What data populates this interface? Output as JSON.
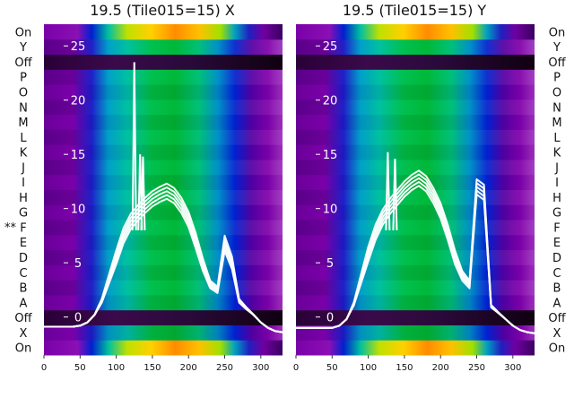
{
  "chart_data": [
    {
      "type": "heatmap",
      "title": "19.5 (Tile015=15) X",
      "row_labels_left": [
        "On",
        "X",
        "Off",
        "A",
        "B",
        "C",
        "D",
        "E",
        "F",
        "G",
        "H",
        "I",
        "J",
        "K",
        "L",
        "M",
        "N",
        "O",
        "P",
        "Off",
        "Y",
        "On"
      ],
      "marked_row": "F",
      "marker_text": "**",
      "x_ticks": [
        0,
        50,
        100,
        150,
        200,
        250,
        300
      ],
      "xlim": [
        0,
        330
      ],
      "overlay_y_ticks": [
        0,
        5,
        10,
        15,
        20,
        25
      ],
      "overlay_ylim": [
        -3.5,
        27
      ],
      "overlay_series": {
        "x": [
          0,
          10,
          20,
          30,
          40,
          50,
          60,
          70,
          80,
          90,
          100,
          110,
          120,
          130,
          140,
          150,
          160,
          170,
          180,
          190,
          200,
          210,
          220,
          230,
          240,
          250,
          260,
          270,
          280,
          290,
          300,
          310,
          320,
          330
        ],
        "y": [
          -0.9,
          -0.9,
          -0.9,
          -0.9,
          -0.9,
          -0.8,
          -0.5,
          0.2,
          1.5,
          3.5,
          5.5,
          7.5,
          8.8,
          9.6,
          10.3,
          10.9,
          11.3,
          11.6,
          11.2,
          10.3,
          9.0,
          7.0,
          4.8,
          3.0,
          2.5,
          6.8,
          5.0,
          1.5,
          0.8,
          0.2,
          -0.5,
          -1.0,
          -1.3,
          -1.4
        ]
      },
      "overlay_spikes": [
        {
          "x": 125,
          "y": 23.5
        },
        {
          "x": 133,
          "y": 15.0
        },
        {
          "x": 137,
          "y": 14.8
        }
      ]
    },
    {
      "type": "heatmap",
      "title": "19.5 (Tile015=15) Y",
      "row_labels_right": [
        "On",
        "X",
        "Off",
        "A",
        "B",
        "C",
        "D",
        "E",
        "F",
        "G",
        "H",
        "I",
        "J",
        "K",
        "L",
        "M",
        "N",
        "O",
        "P",
        "Off",
        "Y",
        "On"
      ],
      "x_ticks": [
        0,
        50,
        100,
        150,
        200,
        250,
        300
      ],
      "xlim": [
        0,
        330
      ],
      "overlay_y_ticks": [
        0,
        5,
        10,
        15,
        20,
        25
      ],
      "overlay_ylim": [
        -3.5,
        27
      ],
      "overlay_series": {
        "x": [
          0,
          10,
          20,
          30,
          40,
          50,
          60,
          70,
          80,
          90,
          100,
          110,
          120,
          130,
          140,
          150,
          160,
          170,
          180,
          190,
          200,
          210,
          220,
          230,
          240,
          250,
          260,
          270,
          280,
          290,
          300,
          310,
          320,
          330
        ],
        "y": [
          -1.0,
          -1.0,
          -1.0,
          -1.0,
          -1.0,
          -1.0,
          -0.8,
          -0.2,
          1.2,
          3.5,
          5.8,
          7.8,
          9.2,
          10.2,
          11.0,
          11.8,
          12.4,
          12.8,
          12.3,
          11.2,
          9.8,
          7.8,
          5.5,
          3.8,
          3.0,
          12.0,
          11.5,
          1.0,
          0.4,
          -0.2,
          -0.8,
          -1.2,
          -1.4,
          -1.5
        ]
      },
      "overlay_spikes": [
        {
          "x": 127,
          "y": 15.2
        },
        {
          "x": 137,
          "y": 14.6
        }
      ]
    }
  ]
}
